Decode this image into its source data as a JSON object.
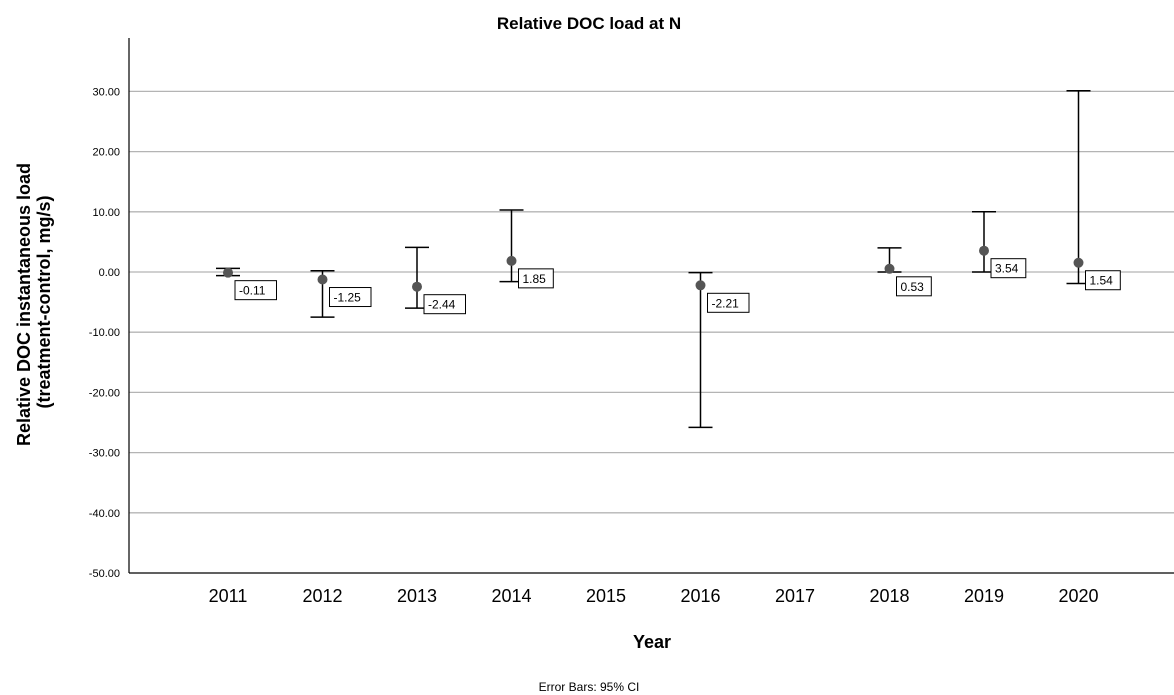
{
  "chart_data": {
    "type": "scatter",
    "title": "Relative DOC load at N",
    "xlabel": "Year",
    "ylabel": [
      "Relative DOC instantaneous load",
      "(treatment-control, mg/s)"
    ],
    "footnote": "Error Bars: 95% CI",
    "categories": [
      "2011",
      "2012",
      "2013",
      "2014",
      "2015",
      "2016",
      "2017",
      "2018",
      "2019",
      "2020"
    ],
    "yticks": [
      "30.00",
      "20.00",
      "10.00",
      "0.00",
      "-10.00",
      "-20.00",
      "-30.00",
      "-40.00",
      "-50.00"
    ],
    "ylim": [
      -50,
      40
    ],
    "grid": true,
    "series": [
      {
        "points": [
          {
            "x": "2011",
            "mean": -0.11,
            "lower": -0.6,
            "upper": 0.6,
            "label": "-0.11"
          },
          {
            "x": "2012",
            "mean": -1.25,
            "lower": -7.5,
            "upper": 0.2,
            "label": "-1.25"
          },
          {
            "x": "2013",
            "mean": -2.44,
            "lower": -6.0,
            "upper": 4.1,
            "label": "-2.44"
          },
          {
            "x": "2014",
            "mean": 1.85,
            "lower": -1.6,
            "upper": 10.3,
            "label": "1.85"
          },
          {
            "x": "2016",
            "mean": -2.21,
            "lower": -25.8,
            "upper": -0.1,
            "label": "-2.21"
          },
          {
            "x": "2018",
            "mean": 0.53,
            "lower": 0.0,
            "upper": 4.0,
            "label": "0.53"
          },
          {
            "x": "2019",
            "mean": 3.54,
            "lower": 0.0,
            "upper": 10.0,
            "label": "3.54"
          },
          {
            "x": "2020",
            "mean": 1.54,
            "lower": -1.9,
            "upper": 30.1,
            "label": "1.54"
          }
        ]
      }
    ],
    "colors": {
      "grid": "#b4b4b4",
      "axis": "#000000",
      "marker": "#555555",
      "errorbar": "#000000"
    }
  }
}
